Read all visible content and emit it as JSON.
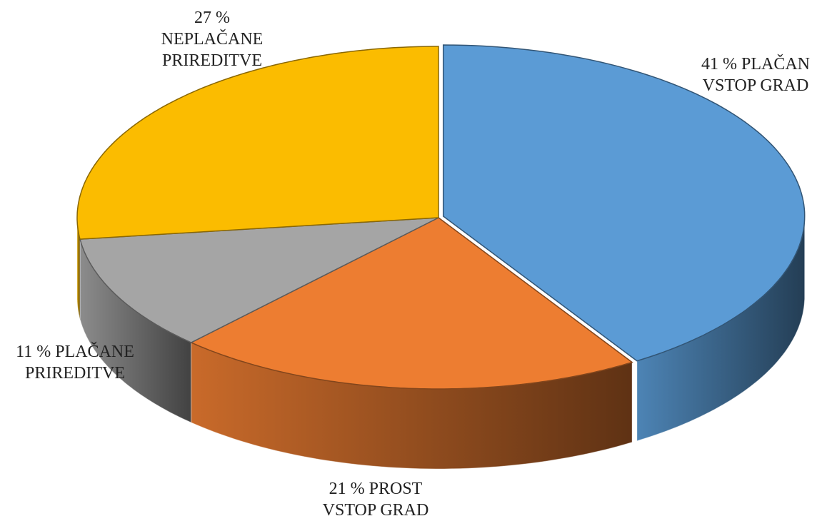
{
  "chart_data": {
    "type": "pie",
    "categories": [
      "PLAČAN VSTOP GRAD",
      "PROST VSTOP GRAD",
      "PLAČANE PRIREDITVE",
      "NEPLAČANE PRIREDITVE"
    ],
    "values": [
      41,
      21,
      11,
      27
    ],
    "value_labels": [
      "41 %",
      "21 %",
      "11 %",
      "27 %"
    ],
    "colors": [
      "#5b9bd5",
      "#ed7d31",
      "#a5a5a5",
      "#fbbc00"
    ]
  }
}
